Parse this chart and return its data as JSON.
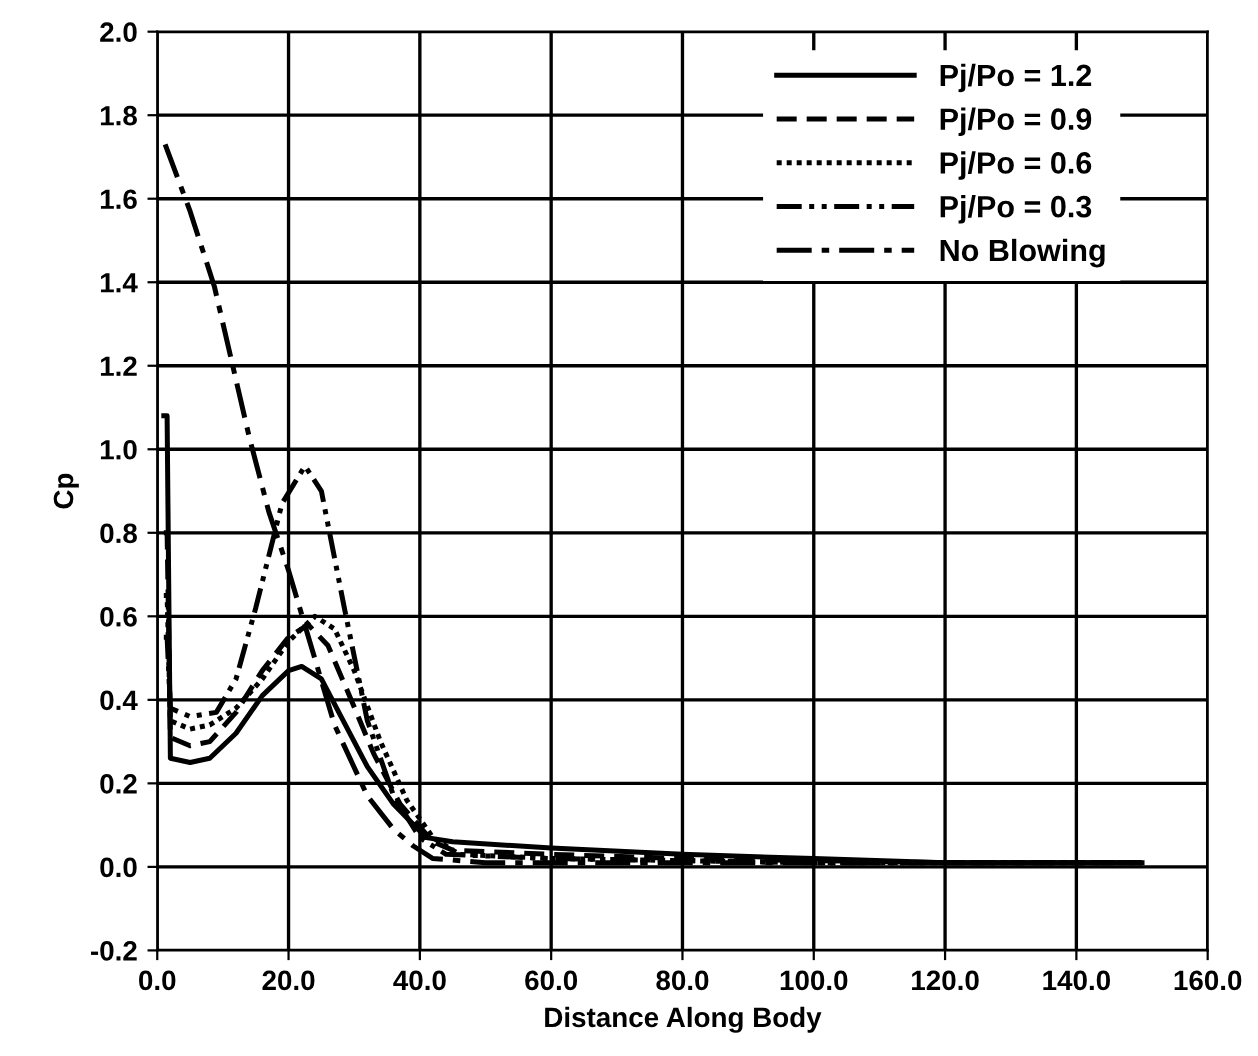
{
  "chart_data": {
    "type": "line",
    "xlabel": "Distance Along Body",
    "ylabel": "Cp",
    "xlim": [
      0,
      160
    ],
    "ylim": [
      -0.2,
      2.0
    ],
    "xticks": [
      {
        "value": 0,
        "label": "0.0"
      },
      {
        "value": 20,
        "label": "20.0"
      },
      {
        "value": 40,
        "label": "40.0"
      },
      {
        "value": 60,
        "label": "60.0"
      },
      {
        "value": 80,
        "label": "80.0"
      },
      {
        "value": 100,
        "label": "100.0"
      },
      {
        "value": 120,
        "label": "120.0"
      },
      {
        "value": 140,
        "label": "140.0"
      },
      {
        "value": 160,
        "label": "160.0"
      }
    ],
    "yticks": [
      {
        "value": -0.2,
        "label": "-0.2"
      },
      {
        "value": 0,
        "label": "0.0"
      },
      {
        "value": 0.2,
        "label": "0.2"
      },
      {
        "value": 0.4,
        "label": "0.4"
      },
      {
        "value": 0.6,
        "label": "0.6"
      },
      {
        "value": 0.8,
        "label": "0.8"
      },
      {
        "value": 1.0,
        "label": "1.0"
      },
      {
        "value": 1.2,
        "label": "1.2"
      },
      {
        "value": 1.4,
        "label": "1.4"
      },
      {
        "value": 1.6,
        "label": "1.6"
      },
      {
        "value": 1.8,
        "label": "1.8"
      },
      {
        "value": 2.0,
        "label": "2.0"
      }
    ],
    "grid": true,
    "legend": "top right",
    "marker": "none",
    "series": [
      {
        "name": "Pj/Po = 1.2",
        "color": "#000000",
        "line_style": "solid",
        "x": [
          1,
          1.5,
          2,
          5,
          8,
          12,
          16,
          20,
          22,
          25,
          28,
          32,
          36,
          41,
          45,
          60,
          80,
          100,
          120,
          150
        ],
        "values": [
          1.08,
          1.08,
          0.26,
          0.25,
          0.26,
          0.32,
          0.41,
          0.47,
          0.48,
          0.45,
          0.36,
          0.24,
          0.15,
          0.07,
          0.06,
          0.045,
          0.03,
          0.02,
          0.01,
          0.01
        ]
      },
      {
        "name": "Pj/Po = 0.9",
        "color": "#000000",
        "line_style": "dashed",
        "x": [
          1,
          1.5,
          2,
          5,
          8,
          12,
          16,
          20,
          23,
          26,
          29,
          33,
          37,
          42,
          45,
          60,
          80,
          100,
          120,
          150
        ],
        "values": [
          0.8,
          0.8,
          0.31,
          0.29,
          0.3,
          0.37,
          0.47,
          0.55,
          0.58,
          0.53,
          0.42,
          0.27,
          0.15,
          0.06,
          0.04,
          0.03,
          0.02,
          0.015,
          0.01,
          0.01
        ]
      },
      {
        "name": "Pj/Po = 0.6",
        "color": "#000000",
        "line_style": "dotted",
        "x": [
          1,
          1.5,
          2,
          5,
          8,
          12,
          16,
          20,
          24,
          27,
          30,
          34,
          38,
          42,
          46,
          60,
          80,
          100,
          120,
          150
        ],
        "values": [
          0.65,
          0.65,
          0.35,
          0.33,
          0.34,
          0.38,
          0.45,
          0.54,
          0.6,
          0.57,
          0.47,
          0.3,
          0.16,
          0.07,
          0.03,
          0.02,
          0.015,
          0.01,
          0.01,
          0.01
        ]
      },
      {
        "name": "Pj/Po = 0.3",
        "color": "#000000",
        "line_style": "dashdotdot",
        "x": [
          1,
          1.5,
          2,
          5,
          9,
          12,
          15,
          19,
          22.5,
          25,
          28.5,
          32,
          36,
          40,
          44,
          60,
          80,
          100,
          120,
          150
        ],
        "values": [
          0.55,
          0.55,
          0.38,
          0.36,
          0.37,
          0.45,
          0.62,
          0.87,
          0.96,
          0.9,
          0.62,
          0.35,
          0.17,
          0.07,
          0.03,
          0.02,
          0.015,
          0.01,
          0.01,
          0.01
        ]
      },
      {
        "name": "No Blowing",
        "color": "#000000",
        "line_style": "dashdot",
        "x": [
          1.2,
          5,
          8.7,
          14,
          17,
          20,
          23.6,
          27,
          32,
          36,
          39,
          42,
          50,
          80,
          120,
          150
        ],
        "values": [
          1.73,
          1.57,
          1.39,
          1.03,
          0.85,
          0.71,
          0.52,
          0.34,
          0.17,
          0.09,
          0.05,
          0.02,
          0.01,
          0.01,
          0.01,
          0.01
        ]
      }
    ]
  }
}
